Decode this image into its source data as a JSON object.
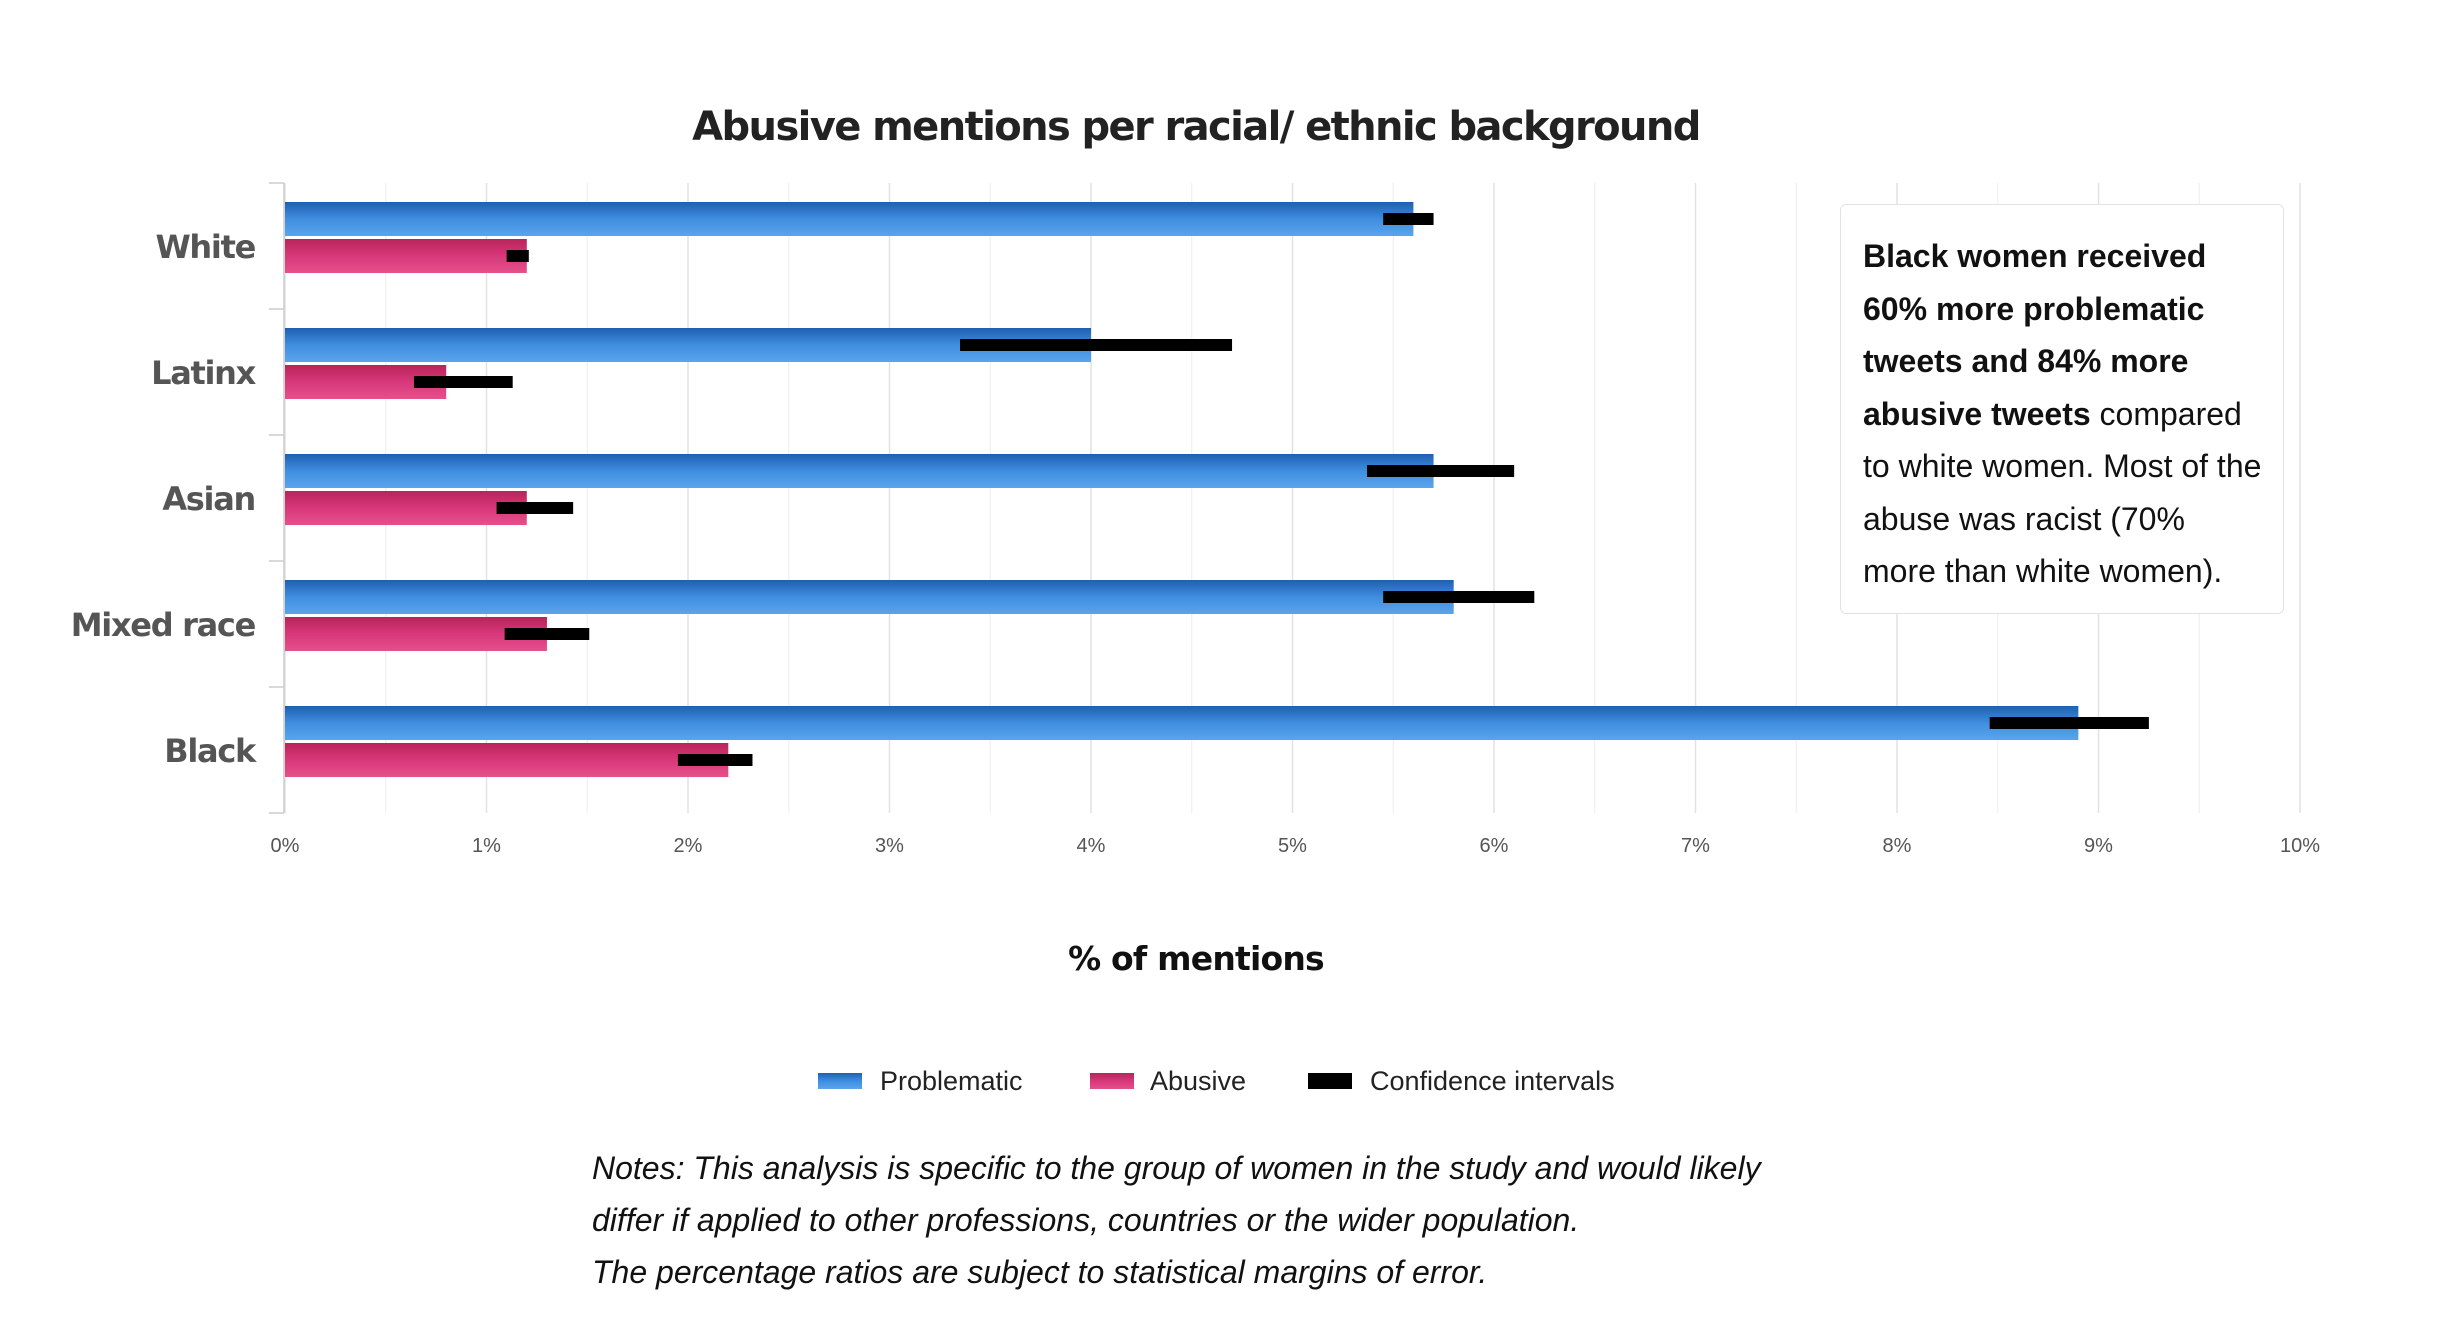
{
  "chart_data": {
    "type": "bar",
    "orientation": "horizontal",
    "title": "Abusive mentions per racial/ ethnic background",
    "xlabel": "% of mentions",
    "ylabel": "",
    "xlim": [
      0,
      10
    ],
    "x_ticks": [
      "0%",
      "1%",
      "2%",
      "3%",
      "4%",
      "5%",
      "6%",
      "7%",
      "8%",
      "9%",
      "10%"
    ],
    "grid": true,
    "legend_position": "bottom",
    "categories": [
      "White",
      "Latinx",
      "Asian",
      "Mixed race",
      "Black"
    ],
    "series": [
      {
        "name": "Problematic",
        "color": "#2e7bd0",
        "values": [
          5.6,
          4.0,
          5.7,
          5.8,
          8.9
        ]
      },
      {
        "name": "Abusive",
        "color": "#d4336e",
        "values": [
          1.2,
          0.8,
          1.2,
          1.3,
          2.2
        ]
      }
    ],
    "confidence_intervals": {
      "name": "Confidence intervals",
      "color": "#000000",
      "Problematic": [
        [
          5.45,
          5.7
        ],
        [
          3.35,
          4.7
        ],
        [
          5.37,
          6.1
        ],
        [
          5.45,
          6.2
        ],
        [
          8.46,
          9.25
        ]
      ],
      "Abusive": [
        [
          1.1,
          1.21
        ],
        [
          0.64,
          1.13
        ],
        [
          1.05,
          1.43
        ],
        [
          1.09,
          1.51
        ],
        [
          1.95,
          2.32
        ]
      ]
    }
  },
  "annotation": {
    "bold_text": "Black women received 60% more problematic tweets and 84% more abusive tweets",
    "normal_text": " compared to white women. Most of the abuse was racist (70% more than white women)."
  },
  "notes": [
    "Notes: This analysis is specific to the group of women in the study and would likely",
    "differ if applied to other professions, countries or the wider population.",
    "The percentage ratios are subject to statistical margins of error."
  ]
}
